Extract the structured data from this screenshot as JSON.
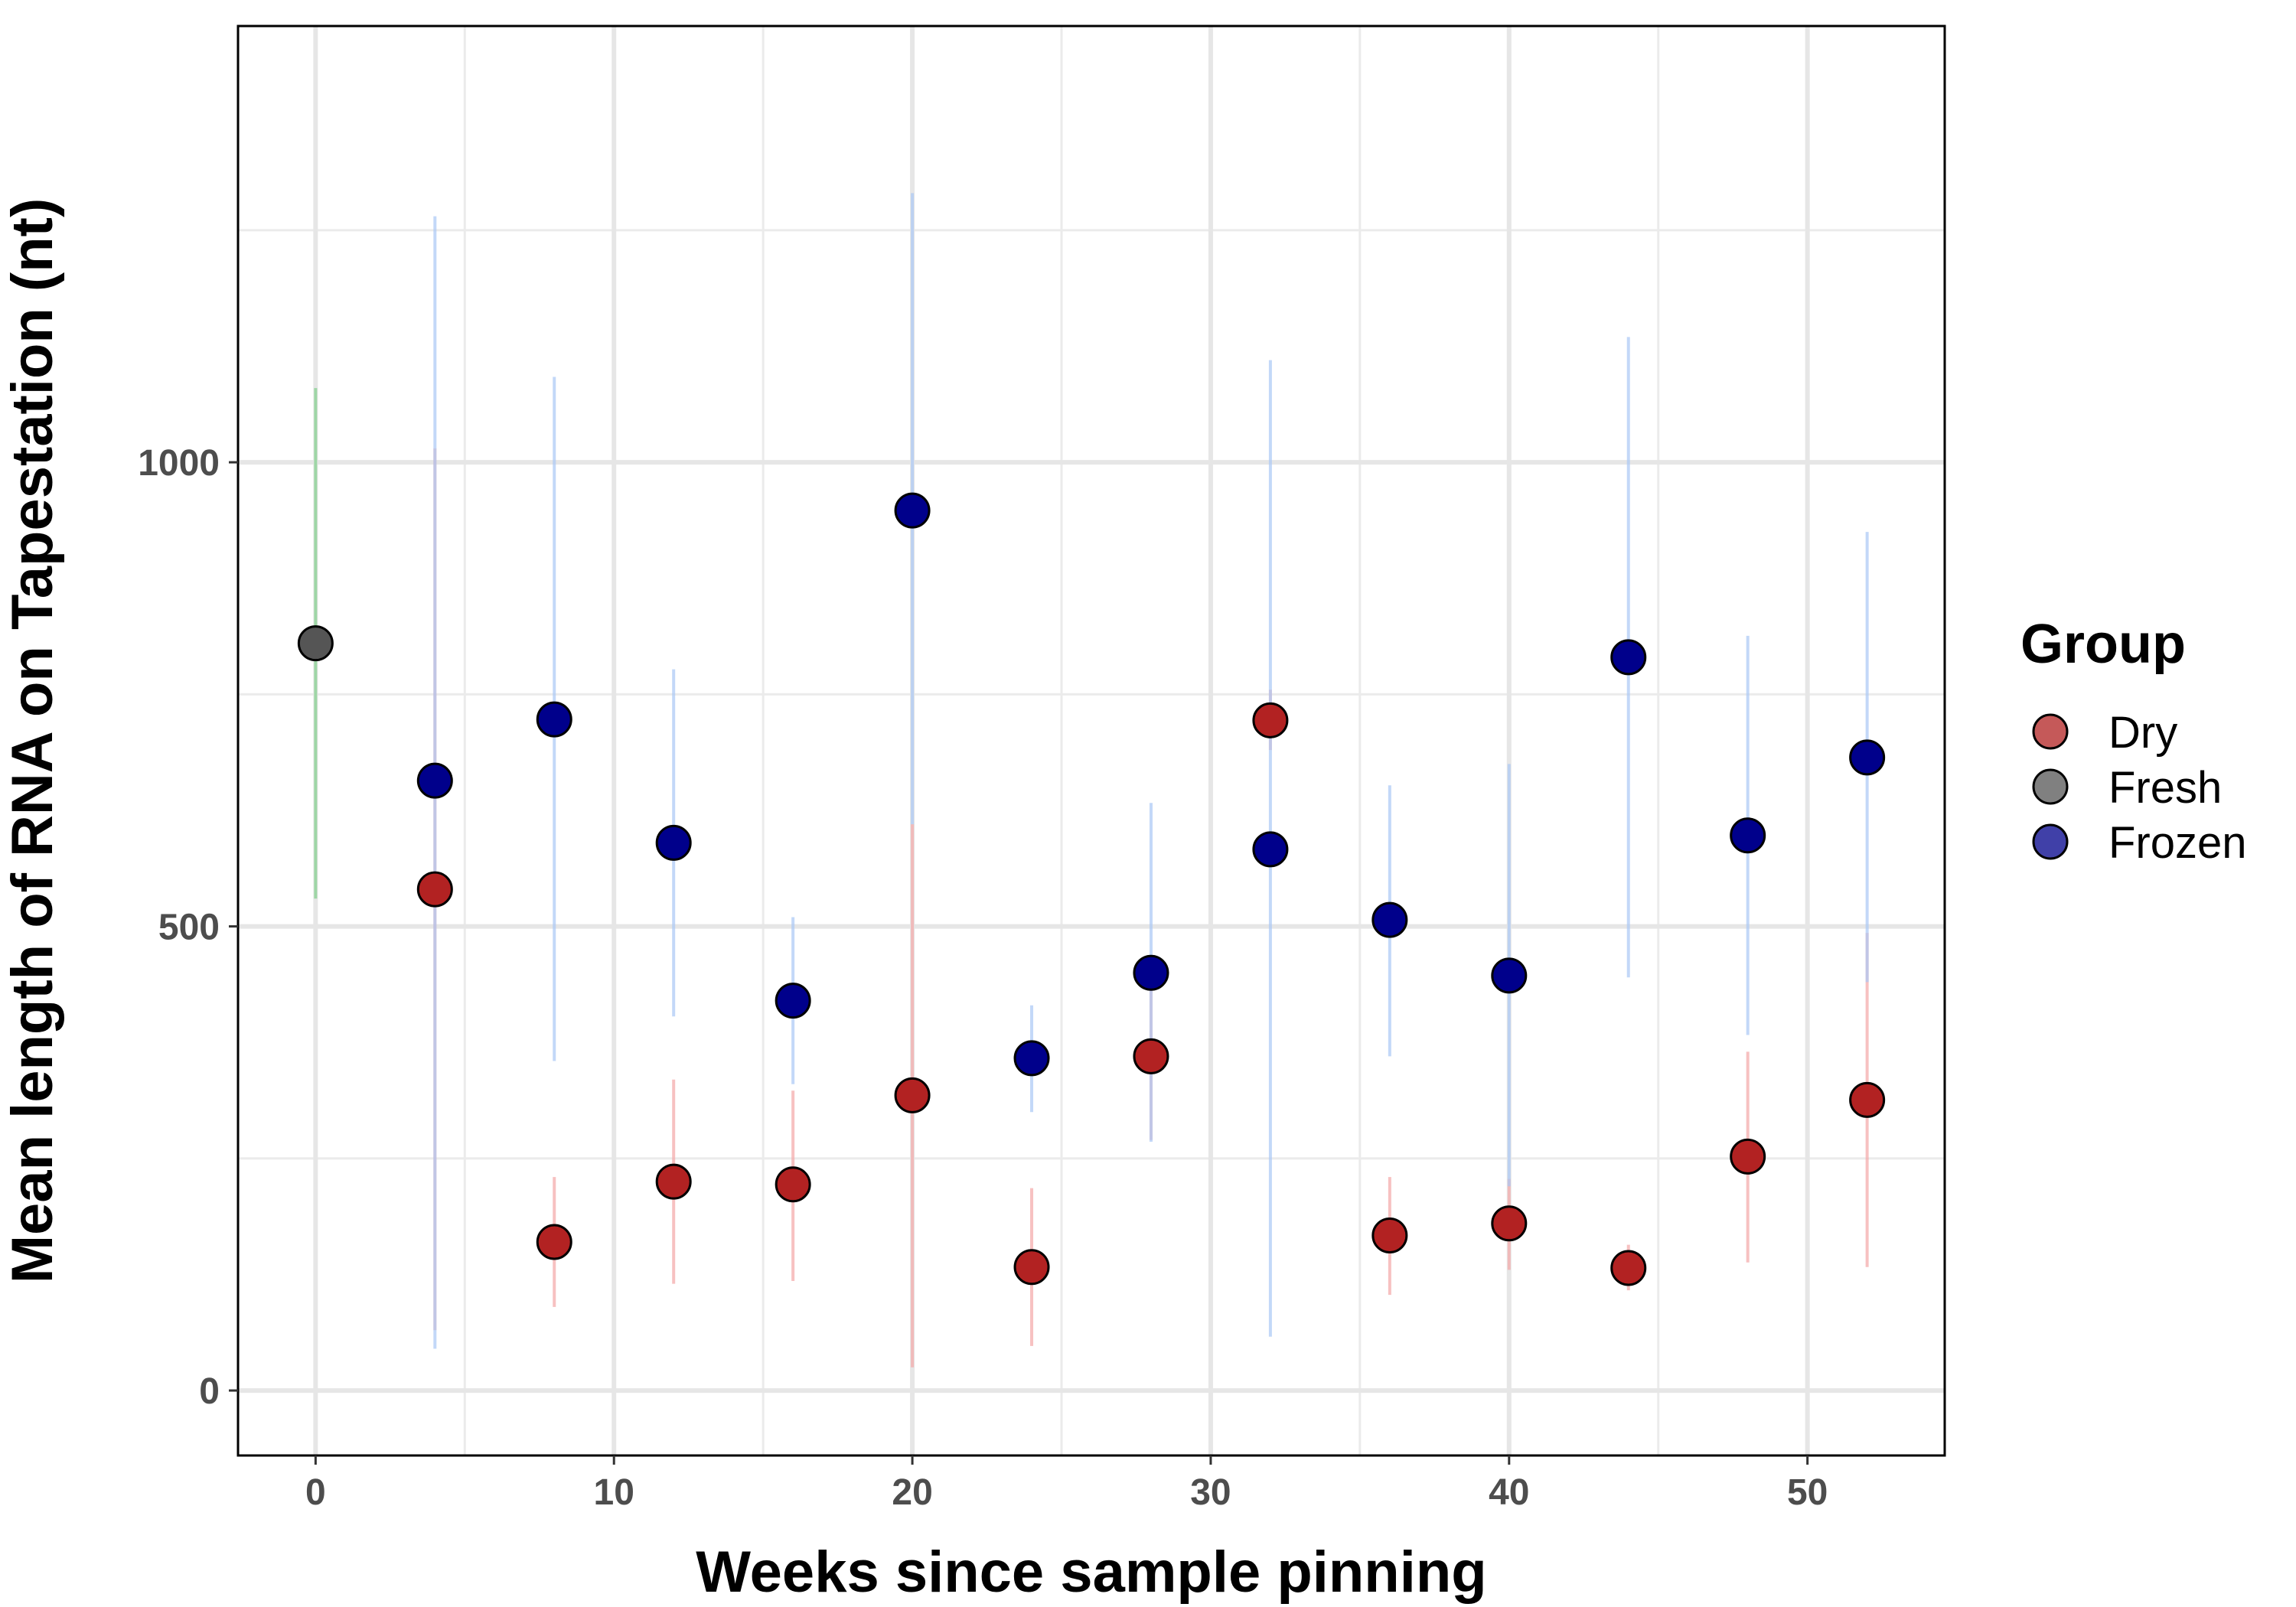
{
  "chart_data": {
    "type": "scatter",
    "xlabel": "Weeks since sample pinning",
    "ylabel": "Mean length of RNA on Tapestation (nt)",
    "xlim": [
      -2.6,
      54.6
    ],
    "ylim": [
      -70,
      1470
    ],
    "x_ticks": [
      0,
      10,
      20,
      30,
      40,
      50
    ],
    "x_minor_ticks": [
      5,
      15,
      25,
      35,
      45
    ],
    "y_ticks": [
      0,
      500,
      1000
    ],
    "y_minor_ticks": [
      250,
      750,
      1250
    ],
    "grid": true,
    "legend": {
      "title": "Group",
      "position": "right"
    },
    "series": [
      {
        "name": "Dry",
        "color": "#b22222",
        "bar_color": "#f4a6a6",
        "points": [
          {
            "x": 4,
            "y": 540,
            "lo": 65,
            "hi": 1015
          },
          {
            "x": 8,
            "y": 160,
            "lo": 90,
            "hi": 230
          },
          {
            "x": 12,
            "y": 225,
            "lo": 115,
            "hi": 335
          },
          {
            "x": 16,
            "y": 222,
            "lo": 118,
            "hi": 323
          },
          {
            "x": 20,
            "y": 318,
            "lo": 25,
            "hi": 610
          },
          {
            "x": 24,
            "y": 133,
            "lo": 48,
            "hi": 218
          },
          {
            "x": 28,
            "y": 360,
            "lo": 270,
            "hi": 450
          },
          {
            "x": 32,
            "y": 722,
            "lo": 690,
            "hi": 755
          },
          {
            "x": 36,
            "y": 167,
            "lo": 103,
            "hi": 230
          },
          {
            "x": 40,
            "y": 180,
            "lo": 130,
            "hi": 228
          },
          {
            "x": 44,
            "y": 132,
            "lo": 108,
            "hi": 157
          },
          {
            "x": 48,
            "y": 252,
            "lo": 138,
            "hi": 365
          },
          {
            "x": 52,
            "y": 313,
            "lo": 133,
            "hi": 493
          }
        ]
      },
      {
        "name": "Fresh",
        "color": "#555555",
        "bar_color": "#7fcf8a",
        "points": [
          {
            "x": 0,
            "y": 805,
            "lo": 530,
            "hi": 1080
          }
        ]
      },
      {
        "name": "Frozen",
        "color": "#00008b",
        "bar_color": "#a9c8f5",
        "points": [
          {
            "x": 4,
            "y": 657,
            "lo": 45,
            "hi": 1265
          },
          {
            "x": 8,
            "y": 723,
            "lo": 355,
            "hi": 1092
          },
          {
            "x": 12,
            "y": 590,
            "lo": 403,
            "hi": 777
          },
          {
            "x": 16,
            "y": 420,
            "lo": 330,
            "hi": 510
          },
          {
            "x": 20,
            "y": 948,
            "lo": 610,
            "hi": 1290
          },
          {
            "x": 24,
            "y": 358,
            "lo": 300,
            "hi": 415
          },
          {
            "x": 28,
            "y": 450,
            "lo": 268,
            "hi": 633
          },
          {
            "x": 32,
            "y": 583,
            "lo": 58,
            "hi": 1110
          },
          {
            "x": 36,
            "y": 507,
            "lo": 360,
            "hi": 652
          },
          {
            "x": 40,
            "y": 447,
            "lo": 220,
            "hi": 675
          },
          {
            "x": 44,
            "y": 790,
            "lo": 445,
            "hi": 1135
          },
          {
            "x": 48,
            "y": 598,
            "lo": 383,
            "hi": 813
          },
          {
            "x": 52,
            "y": 682,
            "lo": 440,
            "hi": 925
          }
        ]
      }
    ]
  }
}
